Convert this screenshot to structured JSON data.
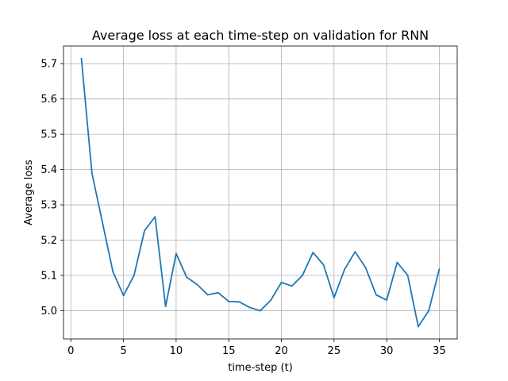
{
  "chart_data": {
    "type": "line",
    "title": "Average loss at each time-step on validation for RNN",
    "xlabel": "time-step (t)",
    "ylabel": "Average loss",
    "xlim": [
      -0.7,
      36.7
    ],
    "ylim": [
      4.92,
      5.75
    ],
    "xticks": [
      0,
      5,
      10,
      15,
      20,
      25,
      30,
      35
    ],
    "xtick_labels": [
      "0",
      "5",
      "10",
      "15",
      "20",
      "25",
      "30",
      "35"
    ],
    "yticks": [
      5.0,
      5.1,
      5.2,
      5.3,
      5.4,
      5.5,
      5.6,
      5.7
    ],
    "ytick_labels": [
      "5.0",
      "5.1",
      "5.2",
      "5.3",
      "5.4",
      "5.5",
      "5.6",
      "5.7"
    ],
    "grid": true,
    "color": "#1f77b4",
    "series": [
      {
        "x": [
          1,
          2,
          3,
          4,
          5,
          6,
          7,
          8,
          9,
          10,
          11,
          12,
          13,
          14,
          15,
          16,
          17,
          18,
          19,
          20,
          21,
          22,
          23,
          24,
          25,
          26,
          27,
          28,
          29,
          30,
          31,
          32,
          33,
          34,
          35
        ],
        "values": [
          5.715,
          5.39,
          5.25,
          5.11,
          5.043,
          5.1,
          5.227,
          5.266,
          5.012,
          5.162,
          5.095,
          5.074,
          5.045,
          5.051,
          5.026,
          5.025,
          5.009,
          5.0,
          5.03,
          5.08,
          5.07,
          5.1,
          5.165,
          5.13,
          5.037,
          5.117,
          5.167,
          5.122,
          5.045,
          5.03,
          5.137,
          5.1,
          4.955,
          5.0,
          5.118
        ]
      }
    ]
  }
}
